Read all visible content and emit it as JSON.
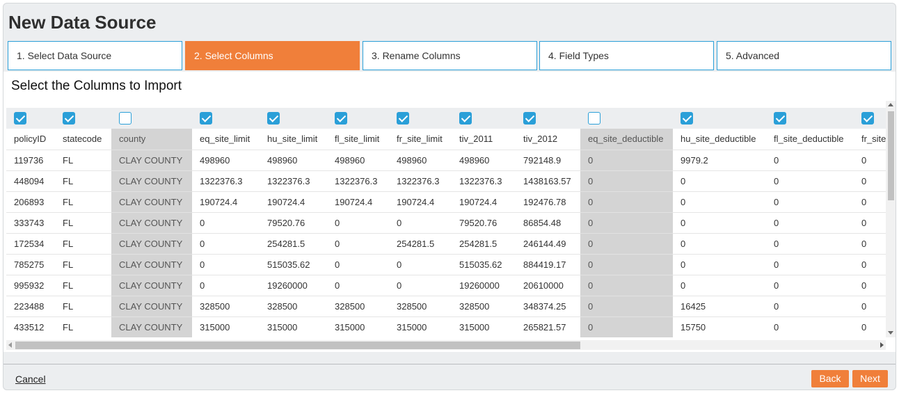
{
  "dialog": {
    "title": "New Data Source"
  },
  "steps": [
    {
      "label": "1. Select Data Source",
      "active": false
    },
    {
      "label": "2. Select Columns",
      "active": true
    },
    {
      "label": "3. Rename Columns",
      "active": false
    },
    {
      "label": "4. Field Types",
      "active": false
    },
    {
      "label": "5. Advanced",
      "active": false
    }
  ],
  "content": {
    "subtitle": "Select the Columns to Import"
  },
  "grid": {
    "columns": [
      {
        "name": "policyID",
        "checked": true
      },
      {
        "name": "statecode",
        "checked": true
      },
      {
        "name": "county",
        "checked": false
      },
      {
        "name": "eq_site_limit",
        "checked": true
      },
      {
        "name": "hu_site_limit",
        "checked": true
      },
      {
        "name": "fl_site_limit",
        "checked": true
      },
      {
        "name": "fr_site_limit",
        "checked": true
      },
      {
        "name": "tiv_2011",
        "checked": true
      },
      {
        "name": "tiv_2012",
        "checked": true
      },
      {
        "name": "eq_site_deductible",
        "checked": false
      },
      {
        "name": "hu_site_deductible",
        "checked": true
      },
      {
        "name": "fl_site_deductible",
        "checked": true
      },
      {
        "name": "fr_site_deductible",
        "checked": true
      }
    ],
    "rows": [
      [
        "119736",
        "FL",
        "CLAY COUNTY",
        "498960",
        "498960",
        "498960",
        "498960",
        "498960",
        "792148.9",
        "0",
        "9979.2",
        "0",
        "0"
      ],
      [
        "448094",
        "FL",
        "CLAY COUNTY",
        "1322376.3",
        "1322376.3",
        "1322376.3",
        "1322376.3",
        "1322376.3",
        "1438163.57",
        "0",
        "0",
        "0",
        "0"
      ],
      [
        "206893",
        "FL",
        "CLAY COUNTY",
        "190724.4",
        "190724.4",
        "190724.4",
        "190724.4",
        "190724.4",
        "192476.78",
        "0",
        "0",
        "0",
        "0"
      ],
      [
        "333743",
        "FL",
        "CLAY COUNTY",
        "0",
        "79520.76",
        "0",
        "0",
        "79520.76",
        "86854.48",
        "0",
        "0",
        "0",
        "0"
      ],
      [
        "172534",
        "FL",
        "CLAY COUNTY",
        "0",
        "254281.5",
        "0",
        "254281.5",
        "254281.5",
        "246144.49",
        "0",
        "0",
        "0",
        "0"
      ],
      [
        "785275",
        "FL",
        "CLAY COUNTY",
        "0",
        "515035.62",
        "0",
        "0",
        "515035.62",
        "884419.17",
        "0",
        "0",
        "0",
        "0"
      ],
      [
        "995932",
        "FL",
        "CLAY COUNTY",
        "0",
        "19260000",
        "0",
        "0",
        "19260000",
        "20610000",
        "0",
        "0",
        "0",
        "0"
      ],
      [
        "223488",
        "FL",
        "CLAY COUNTY",
        "328500",
        "328500",
        "328500",
        "328500",
        "328500",
        "348374.25",
        "0",
        "16425",
        "0",
        "0"
      ],
      [
        "433512",
        "FL",
        "CLAY COUNTY",
        "315000",
        "315000",
        "315000",
        "315000",
        "315000",
        "265821.57",
        "0",
        "15750",
        "0",
        "0"
      ]
    ]
  },
  "footer": {
    "cancel_label": "Cancel",
    "back_label": "Back",
    "next_label": "Next"
  },
  "colors": {
    "accent": "#f07f3a",
    "checkbox": "#2a9fd8",
    "disabled_column": "#d4d4d4"
  }
}
